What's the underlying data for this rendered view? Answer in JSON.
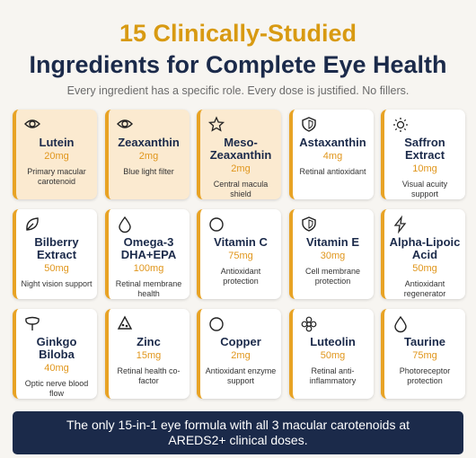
{
  "header": {
    "title_line1": "15 Clinically-Studied",
    "title_line2": "Ingredients for Complete Eye Health",
    "subtitle": "Every ingredient has a specific role. Every dose is justified. No fillers."
  },
  "ingredients": [
    {
      "name": "Lutein",
      "dose": "20mg",
      "description": "Primary macular carotenoid"
    },
    {
      "name": "Zeaxanthin",
      "dose": "2mg",
      "description": "Blue light filter"
    },
    {
      "name": "Meso-Zeaxanthin",
      "dose": "2mg",
      "description": "Central macula shield"
    },
    {
      "name": "Astaxanthin",
      "dose": "4mg",
      "description": "Retinal antioxidant"
    },
    {
      "name": "Saffron Extract",
      "dose": "10mg",
      "description": "Visual acuity support"
    },
    {
      "name": "Bilberry Extract",
      "dose": "50mg",
      "description": "Night vision support"
    },
    {
      "name": "Omega-3 DHA+EPA",
      "dose": "100mg",
      "description": "Retinal membrane health"
    },
    {
      "name": "Vitamin C",
      "dose": "75mg",
      "description": "Antioxidant protection"
    },
    {
      "name": "Vitamin E",
      "dose": "30mg",
      "description": "Cell membrane protection"
    },
    {
      "name": "Alpha-Lipoic Acid",
      "dose": "50mg",
      "description": "Antioxidant regenerator"
    },
    {
      "name": "Ginkgo Biloba",
      "dose": "40mg",
      "description": "Optic nerve blood flow"
    },
    {
      "name": "Zinc",
      "dose": "15mg",
      "description": "Retinal health co-factor"
    },
    {
      "name": "Copper",
      "dose": "2mg",
      "description": "Antioxidant enzyme support"
    },
    {
      "name": "Luteolin",
      "dose": "50mg",
      "description": "Retinal anti-inflammatory"
    },
    {
      "name": "Taurine",
      "dose": "75mg",
      "description": "Photoreceptor protection"
    }
  ],
  "footer": {
    "banner": "The only 15-in-1 eye formula with all 3 macular carotenoids at AREDS2+ clinical doses."
  }
}
